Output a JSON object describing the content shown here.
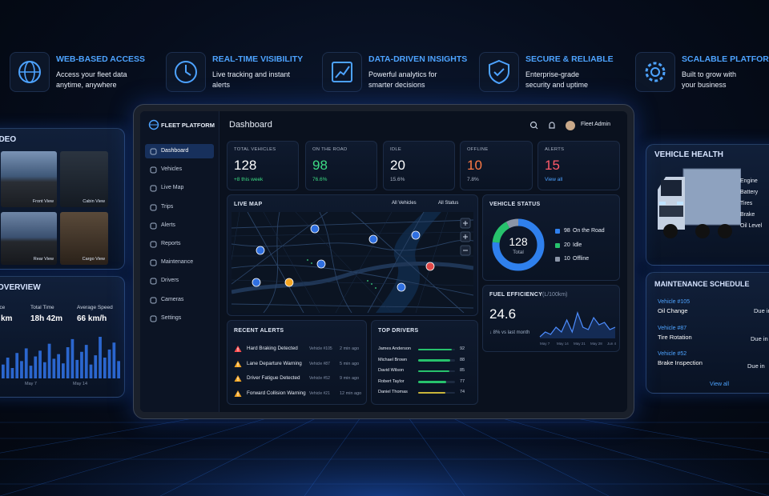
{
  "features": [
    {
      "title": "WEB-BASED ACCESS",
      "text": "Access your fleet data anytime, anywhere"
    },
    {
      "title": "REAL-TIME VISIBILITY",
      "text": "Live tracking and instant alerts"
    },
    {
      "title": "DATA-DRIVEN INSIGHTS",
      "text": "Powerful analytics for smarter decisions"
    },
    {
      "title": "SECURE & RELIABLE",
      "text": "Enterprise-grade security and uptime"
    },
    {
      "title": "SCALABLE PLATFORM",
      "text": "Built to grow with your business"
    }
  ],
  "dashboard": {
    "brand": "FLEET PLATFORM",
    "title": "Dashboard",
    "user": "Fleet Admin",
    "nav": [
      "Dashboard",
      "Vehicles",
      "Live Map",
      "Trips",
      "Alerts",
      "Reports",
      "Maintenance",
      "Drivers",
      "Cameras",
      "Settings"
    ],
    "kpis": [
      {
        "label": "TOTAL VEHICLES",
        "value": 128,
        "sub": "+8 this week",
        "color": "#ffffff",
        "sub_color": "#3ddc84"
      },
      {
        "label": "ON THE ROAD",
        "value": 98,
        "sub": "76.6%",
        "color": "#3ddc84",
        "sub_color": "#3ddc84"
      },
      {
        "label": "IDLE",
        "value": 20,
        "sub": "15.6%",
        "color": "#ffffff",
        "sub_color": "#aab4c5"
      },
      {
        "label": "OFFLINE",
        "value": 10,
        "sub": "7.8%",
        "color": "#ff7a45",
        "sub_color": "#aab4c5"
      },
      {
        "label": "ALERTS",
        "value": 15,
        "sub": "View all",
        "color": "#ff5a6a",
        "sub_color": "#4da3ff"
      }
    ],
    "live_map": {
      "title": "LIVE MAP",
      "filters": [
        "All Vehicles",
        "All Status"
      ]
    },
    "vehicle_status": {
      "title": "VEHICLE STATUS",
      "total": 128,
      "total_label": "Total",
      "series": [
        {
          "name": "On the Road",
          "value": 98,
          "color": "#2f80ed"
        },
        {
          "name": "Idle",
          "value": 20,
          "color": "#27c26c"
        },
        {
          "name": "Offline",
          "value": 10,
          "color": "#8b95a7"
        }
      ]
    },
    "fuel": {
      "title": "FUEL EFFICIENCY",
      "unit": "(L/100km)",
      "value": 24.6,
      "change": "↓ 8% vs last month",
      "categories": [
        "May 7",
        "May 14",
        "May 21",
        "May 28",
        "Jun 4"
      ],
      "values": [
        25,
        26,
        25.5,
        27,
        26,
        28.5,
        26,
        30,
        27,
        26.5,
        29,
        27.5,
        28,
        26.5,
        27
      ]
    },
    "alerts": {
      "title": "RECENT ALERTS",
      "rows": [
        {
          "title": "Hard Braking Detected",
          "vehicle": "Vehicle #105",
          "time": "2 min ago",
          "color": "#ff4d4f"
        },
        {
          "title": "Lane Departure Warning",
          "vehicle": "Vehicle #87",
          "time": "5 min ago",
          "color": "#f5a623"
        },
        {
          "title": "Driver Fatigue Detected",
          "vehicle": "Vehicle #52",
          "time": "9 min ago",
          "color": "#f5a623"
        },
        {
          "title": "Forward Collision Warning",
          "vehicle": "Vehicle #21",
          "time": "12 min ago",
          "color": "#f5a623"
        }
      ]
    },
    "drivers": {
      "title": "TOP DRIVERS",
      "rows": [
        {
          "name": "James Anderson",
          "score": 92
        },
        {
          "name": "Michael Brown",
          "score": 88
        },
        {
          "name": "David Wilson",
          "score": 85
        },
        {
          "name": "Robert Taylor",
          "score": 77
        },
        {
          "name": "Daniel Thomas",
          "score": 74
        }
      ]
    }
  },
  "video": {
    "title": "VIDEO",
    "cameras": [
      "Front View",
      "Cabin View",
      "Rear View",
      "Cargo View"
    ]
  },
  "overview": {
    "title": "OVERVIEW",
    "stats": [
      {
        "label": "Distance",
        "value": "km"
      },
      {
        "label": "Total Time",
        "value": "18h 42m"
      },
      {
        "label": "Average Speed",
        "value": "66 km/h"
      }
    ],
    "categories": [
      "May 7",
      "May 14"
    ],
    "values": [
      12,
      18,
      9,
      22,
      15,
      26,
      11,
      19,
      24,
      14,
      30,
      17,
      21,
      13,
      27,
      34,
      16,
      23,
      29,
      12,
      20,
      36,
      18,
      25,
      31,
      15
    ]
  },
  "vehicle_health": {
    "title": "VEHICLE HEALTH",
    "items": [
      "Engine",
      "Battery",
      "Tires",
      "Brake",
      "Oil Level"
    ]
  },
  "maintenance": {
    "title": "MAINTENANCE SCHEDULE",
    "rows": [
      {
        "vehicle": "Vehicle #105",
        "task": "Oil Change",
        "due": "Due in"
      },
      {
        "vehicle": "Vehicle #87",
        "task": "Tire Rotation",
        "due": "Due in"
      },
      {
        "vehicle": "Vehicle #52",
        "task": "Brake Inspection",
        "due": "Due in"
      }
    ],
    "link": "View all"
  }
}
